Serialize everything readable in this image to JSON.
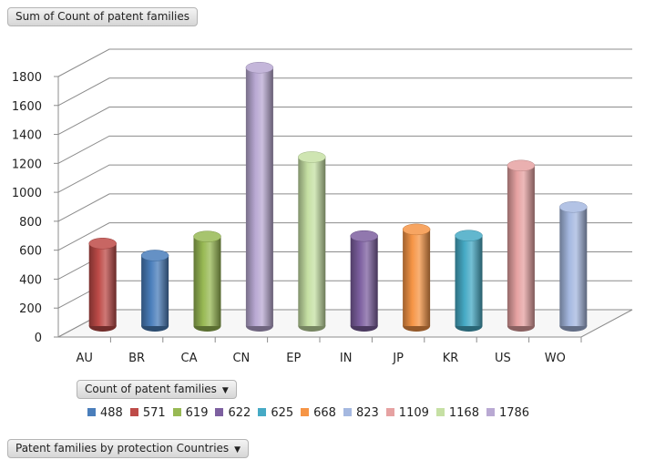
{
  "pivot": {
    "value_field_label": "Sum of Count of patent families",
    "series_field_label": "Count of patent families",
    "axis_field_label": "Patent families by protection Countries",
    "dropdown_icon": "triangle-down-icon"
  },
  "legend": {
    "items": [
      {
        "label": "488",
        "color": "#4a7ebb"
      },
      {
        "label": "571",
        "color": "#be4b48"
      },
      {
        "label": "619",
        "color": "#98b954"
      },
      {
        "label": "622",
        "color": "#7d60a0"
      },
      {
        "label": "625",
        "color": "#46aac5"
      },
      {
        "label": "668",
        "color": "#f69546"
      },
      {
        "label": "823",
        "color": "#a5b8e0"
      },
      {
        "label": "1109",
        "color": "#e6a2a2"
      },
      {
        "label": "1168",
        "color": "#c6e0a4"
      },
      {
        "label": "1786",
        "color": "#b9a9d3"
      }
    ]
  },
  "chart_data": {
    "type": "bar",
    "subtype": "3d-cylinder",
    "categories": [
      "AU",
      "BR",
      "CA",
      "CN",
      "EP",
      "IN",
      "JP",
      "KR",
      "US",
      "WO"
    ],
    "values": [
      571,
      488,
      619,
      1786,
      1168,
      622,
      668,
      625,
      1109,
      823
    ],
    "colors": [
      "#be4b48",
      "#4a7ebb",
      "#98b954",
      "#b9a9d3",
      "#c6e0a4",
      "#7d60a0",
      "#f69546",
      "#46aac5",
      "#e6a2a2",
      "#a5b8e0"
    ],
    "y_ticks": [
      0,
      200,
      400,
      600,
      800,
      1000,
      1200,
      1400,
      1600,
      1800
    ],
    "ylim": [
      0,
      1800
    ],
    "grid": true,
    "legend_position": "bottom"
  }
}
